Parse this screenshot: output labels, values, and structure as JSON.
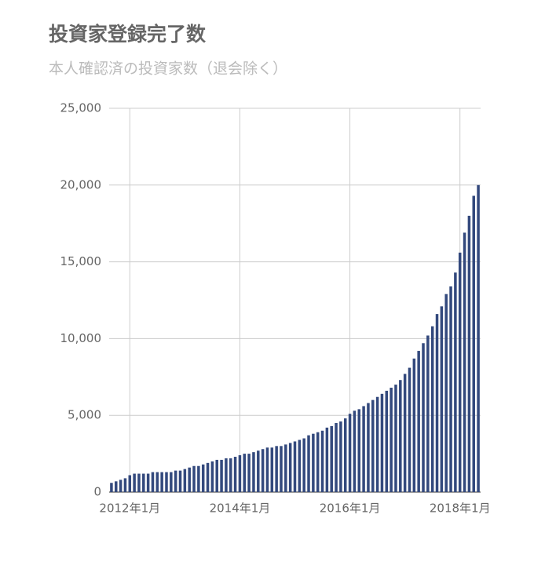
{
  "chart_data": {
    "type": "bar",
    "title": "投資家登録完了数",
    "subtitle": "本人確認済の投資家数（退会除く）",
    "categories": [
      null,
      null,
      null,
      null,
      "2012年1月",
      null,
      null,
      null,
      null,
      null,
      null,
      null,
      null,
      null,
      null,
      null,
      null,
      null,
      null,
      null,
      null,
      null,
      null,
      null,
      null,
      null,
      null,
      null,
      "2014年1月",
      null,
      null,
      null,
      null,
      null,
      null,
      null,
      null,
      null,
      null,
      null,
      null,
      null,
      null,
      null,
      null,
      null,
      null,
      null,
      null,
      null,
      null,
      null,
      "2016年1月",
      null,
      null,
      null,
      null,
      null,
      null,
      null,
      null,
      null,
      null,
      null,
      null,
      null,
      null,
      null,
      null,
      null,
      null,
      null,
      null,
      null,
      null,
      null,
      "2018年1月",
      null,
      null,
      null,
      null
    ],
    "values": [
      600,
      700,
      800,
      900,
      1100,
      1200,
      1200,
      1200,
      1200,
      1300,
      1300,
      1300,
      1300,
      1300,
      1400,
      1400,
      1500,
      1600,
      1700,
      1700,
      1800,
      1900,
      2000,
      2100,
      2100,
      2200,
      2200,
      2300,
      2400,
      2500,
      2500,
      2600,
      2700,
      2800,
      2900,
      2900,
      3000,
      3000,
      3100,
      3200,
      3300,
      3400,
      3500,
      3700,
      3800,
      3900,
      4000,
      4200,
      4300,
      4500,
      4600,
      4800,
      5100,
      5300,
      5400,
      5600,
      5800,
      6000,
      6200,
      6400,
      6600,
      6800,
      7000,
      7300,
      7700,
      8100,
      8700,
      9200,
      9700,
      10200,
      10800,
      11600,
      12100,
      12900,
      13400,
      14300,
      15600,
      16900,
      18000,
      19300,
      20000
    ],
    "color": "#33497d",
    "ylim": [
      0,
      25000
    ],
    "yticks": [
      0,
      {
        "value": 5000,
        "label": "5,000"
      },
      {
        "value": 10000,
        "label": "10,000"
      },
      {
        "value": 15000,
        "label": "15,000"
      },
      {
        "value": 20000,
        "label": "20,000"
      },
      {
        "value": 25000,
        "label": "25,000"
      }
    ],
    "grid": true
  }
}
